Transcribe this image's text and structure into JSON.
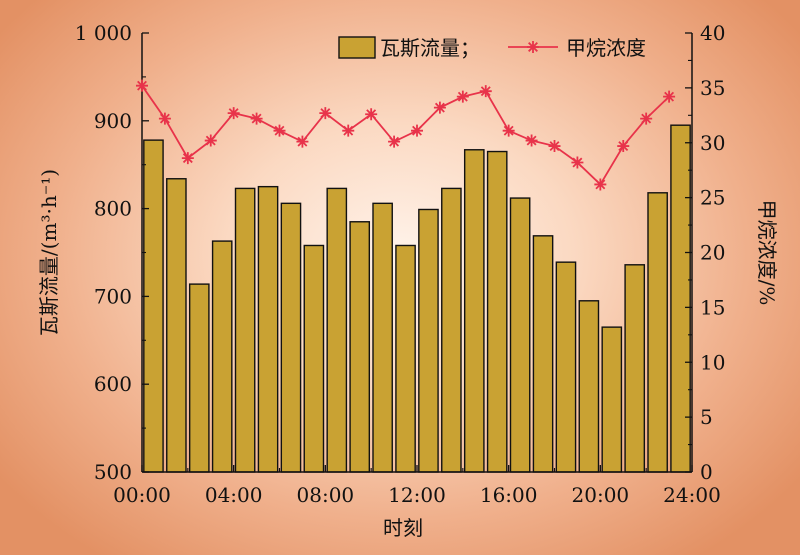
{
  "chart_data": {
    "type": "bar+line",
    "x_ticks": [
      "00:00",
      "04:00",
      "08:00",
      "12:00",
      "16:00",
      "20:00",
      "24:00"
    ],
    "xlabel": "时刻",
    "ylabel_left": "瓦斯流量/(m³·h⁻¹)",
    "ylabel_right": "甲烷浓度/%",
    "ylim_left": [
      500,
      1000
    ],
    "ylim_right": [
      0,
      40
    ],
    "yticks_left": [
      "500",
      "600",
      "700",
      "800",
      "900",
      "1 000"
    ],
    "yticks_right": [
      "0",
      "5",
      "10",
      "15",
      "20",
      "25",
      "30",
      "35",
      "40"
    ],
    "legend_position": "top-right",
    "hours": [
      0,
      1,
      2,
      3,
      4,
      5,
      6,
      7,
      8,
      9,
      10,
      11,
      12,
      13,
      14,
      15,
      16,
      17,
      18,
      19,
      20,
      21,
      22,
      23
    ],
    "series": [
      {
        "name": "瓦斯流量；",
        "kind": "bar",
        "axis": "left",
        "color": "#c9a233",
        "values": [
          878,
          834,
          714,
          763,
          823,
          825,
          806,
          758,
          823,
          785,
          806,
          758,
          799,
          823,
          867,
          865,
          812,
          769,
          739,
          695,
          665,
          736,
          818,
          895
        ]
      },
      {
        "name": "甲烷浓度",
        "kind": "line",
        "axis": "right",
        "color": "#e8334a",
        "values": [
          35.2,
          32.2,
          28.6,
          30.2,
          32.7,
          32.2,
          31.1,
          30.1,
          32.7,
          31.1,
          32.6,
          30.1,
          31.1,
          33.2,
          34.2,
          34.7,
          31.1,
          30.2,
          29.7,
          28.2,
          26.2,
          29.7,
          32.2,
          34.2
        ]
      }
    ]
  },
  "colors": {
    "axis": "#111111",
    "bar_stroke": "#111111"
  }
}
